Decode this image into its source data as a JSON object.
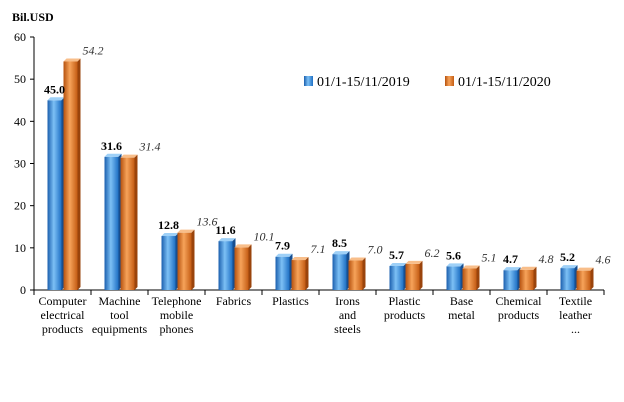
{
  "chart_data": {
    "type": "bar",
    "unit_label": "Bil.USD",
    "yticks": [
      0,
      10,
      20,
      30,
      40,
      50,
      60
    ],
    "ylim": [
      0,
      60
    ],
    "grid": false,
    "legend_position": "top-right",
    "categories": [
      [
        "Computer",
        "electrical",
        "products"
      ],
      [
        "Machine",
        "tool",
        "equipments"
      ],
      [
        "Telephone",
        "mobile",
        "phones"
      ],
      [
        "Fabrics"
      ],
      [
        "Plastics"
      ],
      [
        "Irons",
        "and",
        "steels"
      ],
      [
        "Plastic",
        "products"
      ],
      [
        "Base",
        "metal"
      ],
      [
        "Chemical",
        "products"
      ],
      [
        "Textile",
        "leather",
        "..."
      ]
    ],
    "series": [
      {
        "name": "01/1-15/11/2019",
        "color": "#2E86DE",
        "values": [
          45.0,
          31.6,
          12.8,
          11.6,
          7.9,
          8.5,
          5.7,
          5.6,
          4.7,
          5.2
        ],
        "labels": [
          "45.0",
          "31.6",
          "12.8",
          "11.6",
          "7.9",
          "8.5",
          "5.7",
          "5.6",
          "4.7",
          "5.2"
        ]
      },
      {
        "name": "01/1-15/11/2020",
        "color": "#E87722",
        "values": [
          54.2,
          31.4,
          13.6,
          10.1,
          7.1,
          7.0,
          6.2,
          5.1,
          4.8,
          4.6
        ],
        "labels": [
          "54.2",
          "31.4",
          "13.6",
          "10.1",
          "7.1",
          "7.0",
          "6.2",
          "5.1",
          "4.8",
          "4.6"
        ]
      }
    ]
  }
}
